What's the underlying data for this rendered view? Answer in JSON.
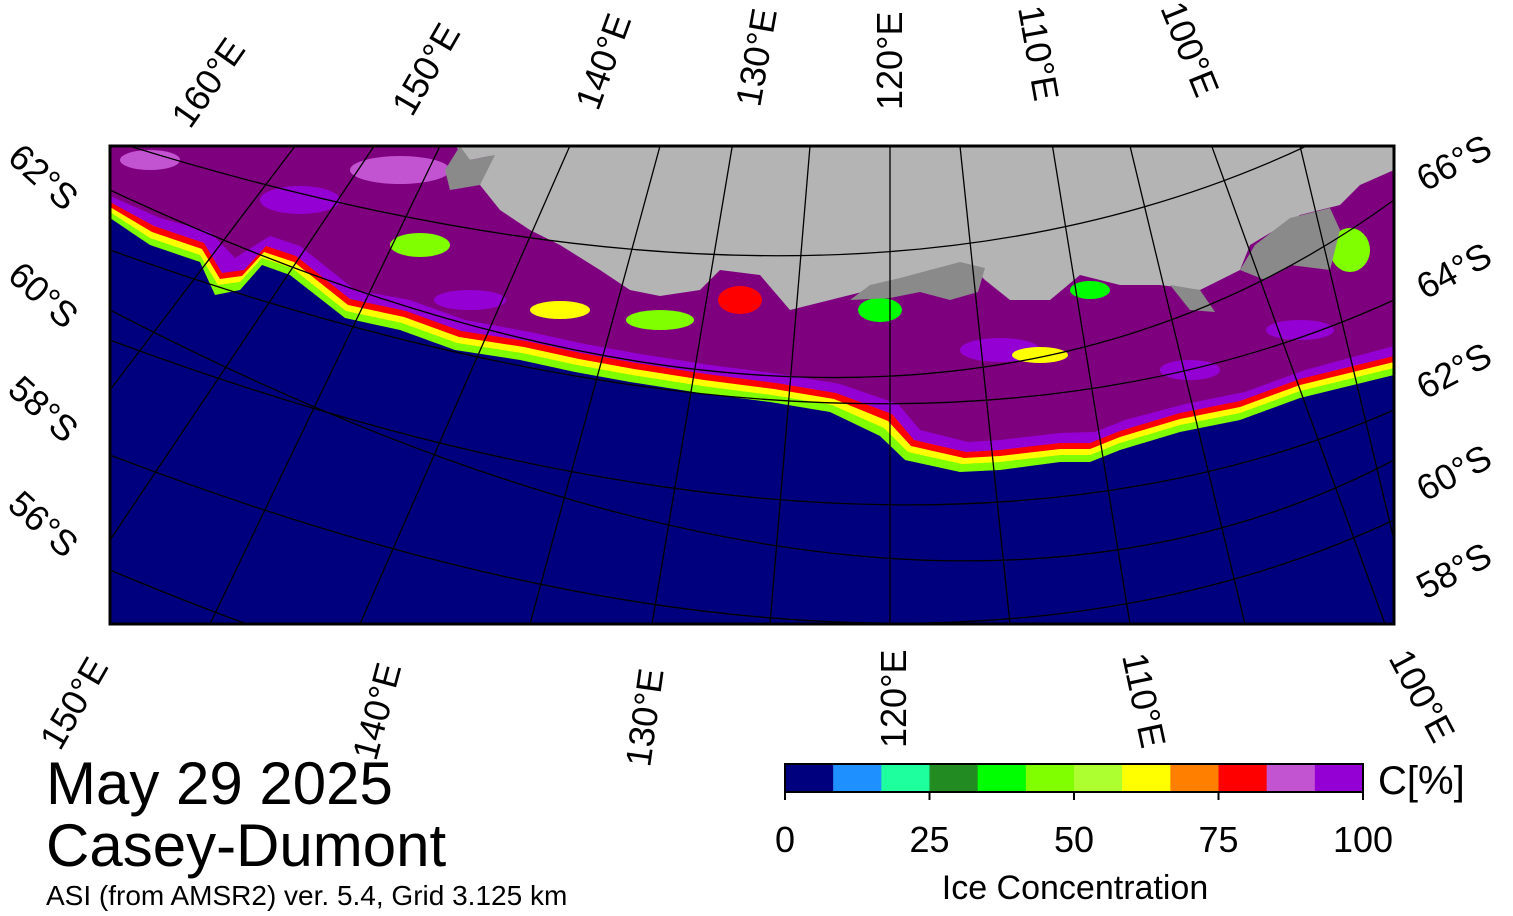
{
  "map": {
    "date": "May 29 2025",
    "region": "Casey-Dumont",
    "subtitle": "ASI (from AMSR2) ver. 5.4,  Grid 3.125 km",
    "top_lon_labels": [
      "160°E",
      "150°E",
      "140°E",
      "130°E",
      "120°E",
      "110°E",
      "100°E"
    ],
    "bottom_lon_labels": [
      "150°E",
      "140°E",
      "130°E",
      "120°E",
      "110°E",
      "100°E"
    ],
    "left_lat_labels": [
      "62°S",
      "60°S",
      "58°S",
      "56°S"
    ],
    "right_lat_labels": [
      "66°S",
      "64°S",
      "62°S",
      "60°S",
      "58°S"
    ],
    "colors": {
      "ocean": "#00007f",
      "land": "#b4b4b4",
      "ice_shelf": "#8a8a8a",
      "ice_dense": "#7f007f"
    }
  },
  "colorbar": {
    "label": "Ice Concentration",
    "unit": "C[%]",
    "ticks": [
      "0",
      "25",
      "50",
      "75",
      "100"
    ],
    "colors": [
      "#00007f",
      "#1e90ff",
      "#1eff9e",
      "#228b22",
      "#00ff00",
      "#7fff00",
      "#adff2f",
      "#ffff00",
      "#ff7f00",
      "#ff0000",
      "#c354d1",
      "#9400d3"
    ]
  }
}
